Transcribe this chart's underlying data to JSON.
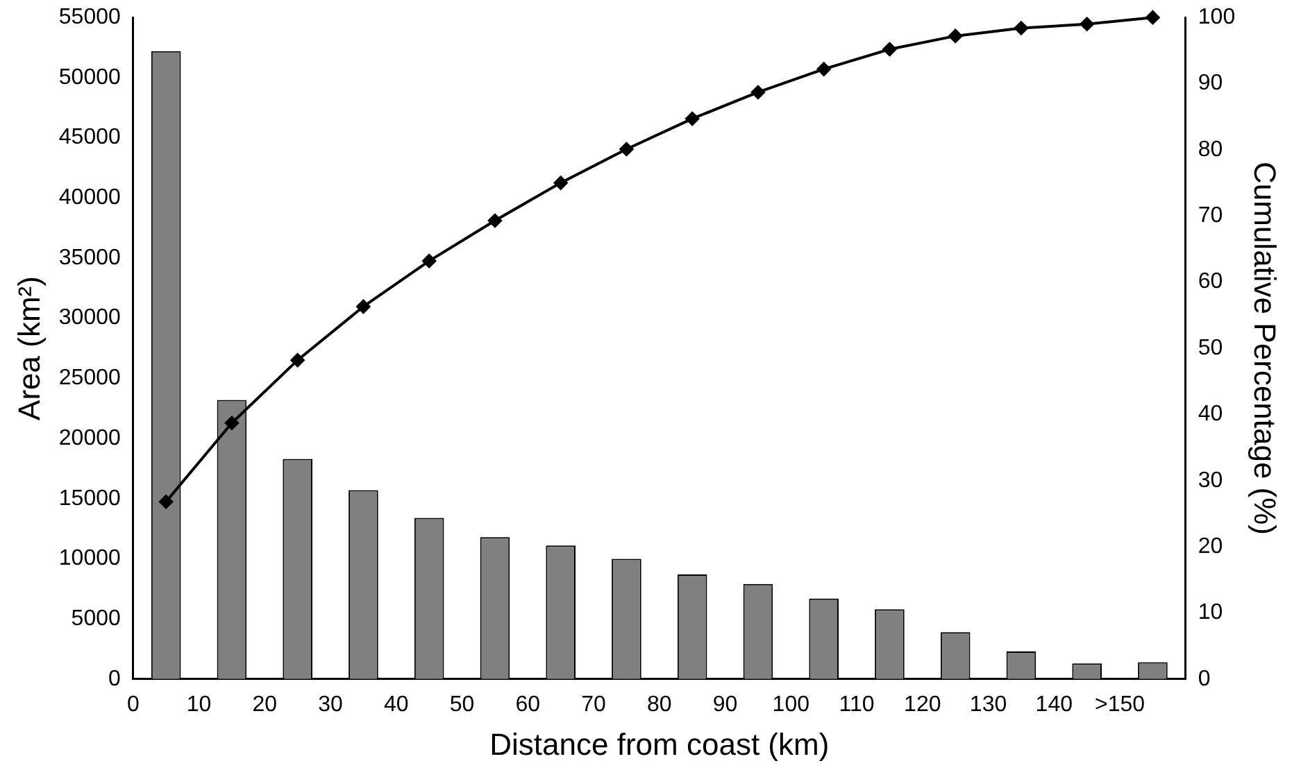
{
  "chart_data": {
    "type": "bar",
    "xlabel": "Distance from coast (km)",
    "ylabel": "Area (km²)",
    "y2label": "Cumulative Percentage (%)",
    "x": [
      5,
      15,
      25,
      35,
      45,
      55,
      65,
      75,
      85,
      95,
      105,
      115,
      125,
      135,
      145,
      155
    ],
    "xlim": [
      0,
      160
    ],
    "xticks": [
      0,
      10,
      20,
      30,
      40,
      50,
      60,
      70,
      80,
      90,
      100,
      110,
      120,
      130,
      140,
      {
        "value": 150,
        "label": ">150"
      }
    ],
    "ylim": [
      0,
      55000
    ],
    "yticks": [
      0,
      5000,
      10000,
      15000,
      20000,
      25000,
      30000,
      35000,
      40000,
      45000,
      50000,
      55000
    ],
    "y2lim": [
      0,
      100
    ],
    "y2ticks": [
      0,
      10,
      20,
      30,
      40,
      50,
      60,
      70,
      80,
      90,
      100
    ],
    "grid": false,
    "legend": false,
    "series": [
      {
        "color": "#808080",
        "values": [
          52200,
          23200,
          18300,
          15700,
          13400,
          11800,
          11100,
          10000,
          8700,
          7900,
          6700,
          5800,
          3900,
          2300,
          1300,
          1400
        ]
      },
      {
        "type": "line",
        "axis": "y2",
        "color": "#000000",
        "marker": "diamond",
        "line_style": "solid",
        "values": [
          26.8,
          38.7,
          48.2,
          56.3,
          63.2,
          69.3,
          75.0,
          80.1,
          84.7,
          88.7,
          92.2,
          95.2,
          97.2,
          98.4,
          99.0,
          100
        ]
      }
    ]
  }
}
